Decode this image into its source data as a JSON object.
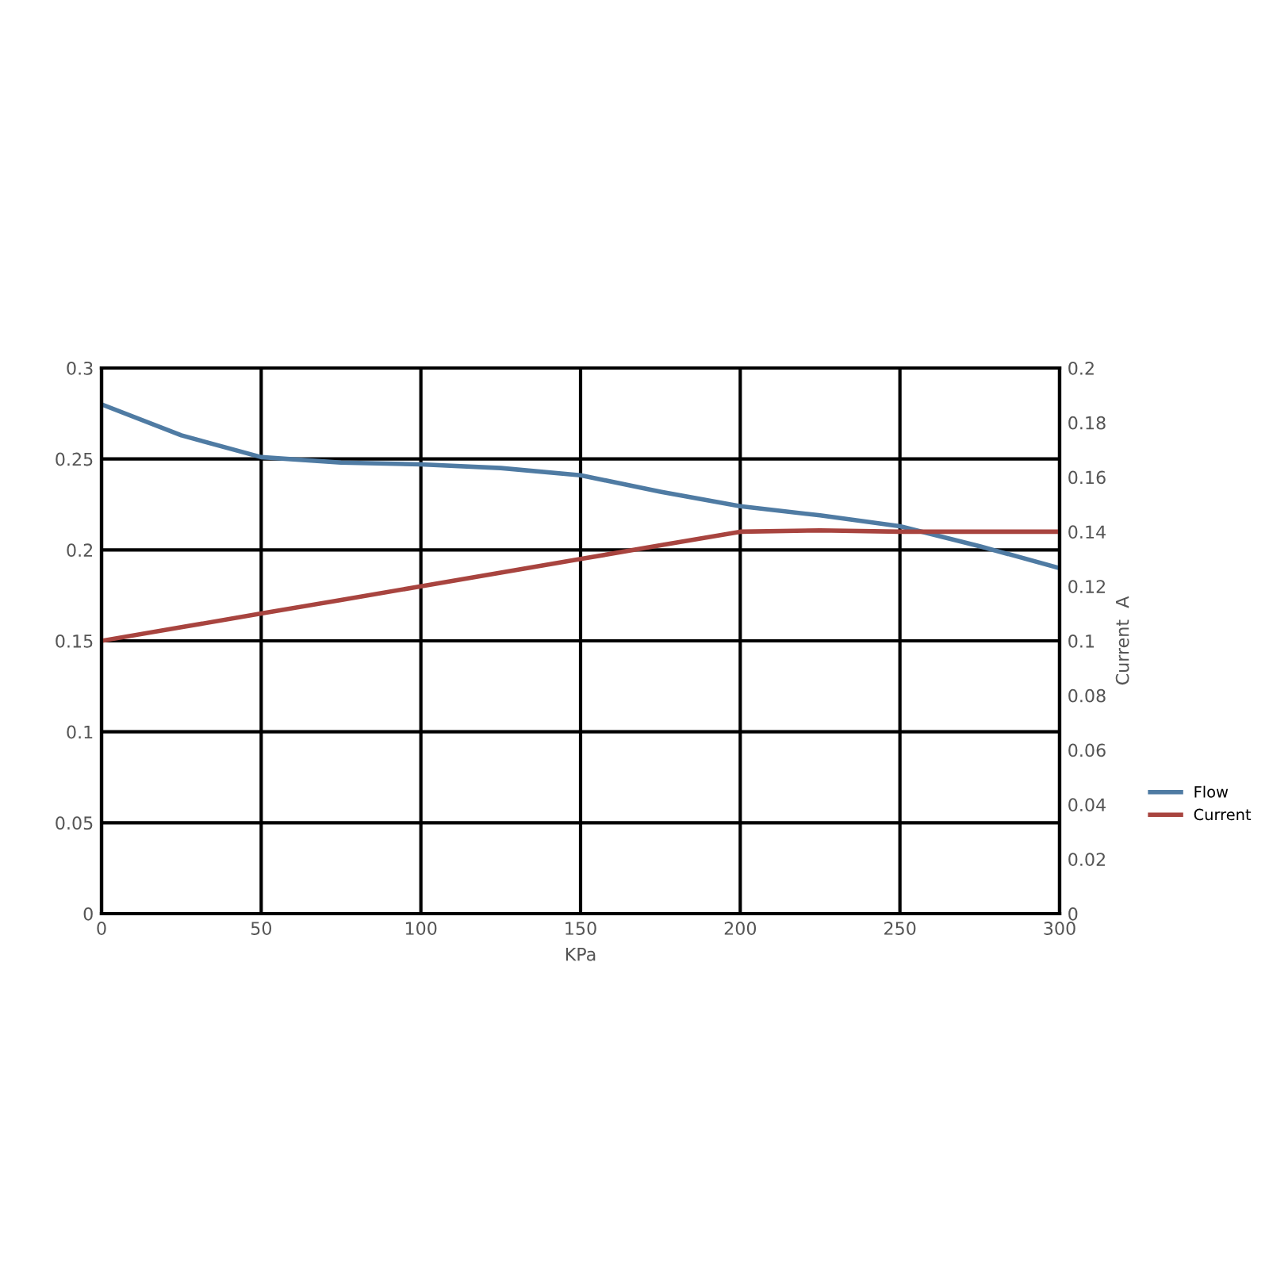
{
  "chart_data": {
    "type": "line",
    "xlabel": "KPa",
    "y2label": "Current  A",
    "x": [
      0,
      25,
      50,
      75,
      100,
      125,
      150,
      175,
      200,
      225,
      250,
      275,
      300
    ],
    "series": [
      {
        "name": "Flow",
        "color": "#4f7ba3",
        "values": [
          0.28,
          0.263,
          0.251,
          0.248,
          0.247,
          0.245,
          0.241,
          0.232,
          0.224,
          0.219,
          0.213,
          0.202,
          0.19
        ]
      },
      {
        "name": "Current",
        "color": "#a8443f",
        "axis": "y2",
        "values": [
          0.1,
          0.105,
          0.11,
          0.115,
          0.12,
          0.125,
          0.13,
          0.135,
          0.14,
          0.1405,
          0.14,
          0.14,
          0.14
        ]
      }
    ],
    "xlim": [
      0,
      300
    ],
    "xticks": [
      0,
      50,
      100,
      150,
      200,
      250,
      300
    ],
    "ylim": [
      0,
      0.3
    ],
    "yticks": [
      0,
      0.05,
      0.1,
      0.15,
      0.2,
      0.25,
      0.3
    ],
    "y2lim": [
      0,
      0.2
    ],
    "y2ticks": [
      0,
      0.02,
      0.04,
      0.06,
      0.08,
      0.1,
      0.12,
      0.14,
      0.16,
      0.18,
      0.2
    ],
    "grid": true,
    "legend": "right",
    "marker": "none",
    "line_style": "solid"
  }
}
